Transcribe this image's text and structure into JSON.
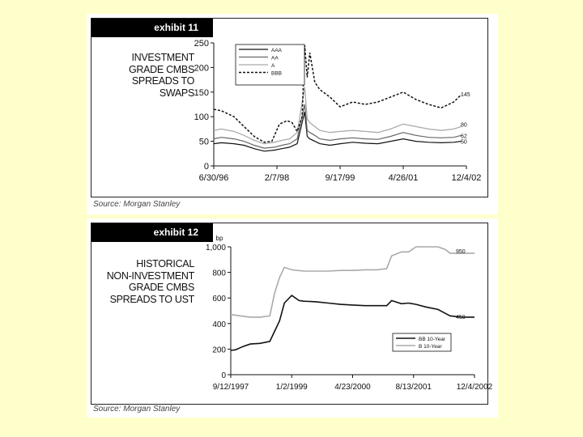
{
  "exhibits": [
    {
      "badge": "exhibit 11",
      "title_lines": [
        "INVESTMENT",
        "GRADE CMBS",
        "SPREADS TO",
        "SWAPS"
      ],
      "source": "Source: Morgan Stanley"
    },
    {
      "badge": "exhibit 12",
      "title_lines": [
        "HISTORICAL",
        "NON-INVESTMENT",
        "GRADE CMBS",
        "SPREADS TO UST"
      ],
      "source": "Source: Morgan Stanley"
    }
  ],
  "chart_data": [
    {
      "type": "line",
      "x_tick_labels": [
        "6/30/96",
        "2/7/98",
        "9/17/99",
        "4/26/01",
        "12/4/02"
      ],
      "y_ticks": [
        0,
        50,
        100,
        150,
        200,
        250
      ],
      "ylim": [
        0,
        250
      ],
      "legend_position": "top-center",
      "colors": {
        "AAA": "#111111",
        "AA": "#666666",
        "A": "#aaaaaa",
        "BBB": "#111111"
      },
      "series": [
        {
          "name": "AAA",
          "end_label": "50",
          "x": [
            0,
            0.03,
            0.08,
            0.12,
            0.16,
            0.2,
            0.24,
            0.27,
            0.3,
            0.33,
            0.36,
            0.37,
            0.38,
            0.4,
            0.42,
            0.46,
            0.5,
            0.55,
            0.6,
            0.65,
            0.7,
            0.75,
            0.8,
            0.85,
            0.9,
            0.95,
            0.98
          ],
          "values": [
            45,
            47,
            45,
            42,
            35,
            30,
            32,
            35,
            38,
            45,
            110,
            60,
            55,
            50,
            45,
            42,
            45,
            48,
            46,
            45,
            50,
            55,
            50,
            48,
            47,
            48,
            50
          ]
        },
        {
          "name": "AA",
          "end_label": "62",
          "x": [
            0,
            0.03,
            0.08,
            0.12,
            0.16,
            0.2,
            0.24,
            0.27,
            0.3,
            0.33,
            0.36,
            0.37,
            0.38,
            0.4,
            0.42,
            0.46,
            0.5,
            0.55,
            0.6,
            0.65,
            0.7,
            0.75,
            0.8,
            0.85,
            0.9,
            0.95,
            0.98
          ],
          "values": [
            55,
            58,
            55,
            50,
            42,
            36,
            38,
            42,
            45,
            55,
            125,
            72,
            68,
            62,
            55,
            52,
            55,
            57,
            55,
            54,
            60,
            68,
            62,
            58,
            57,
            58,
            62
          ]
        },
        {
          "name": "A",
          "end_label": "80",
          "x": [
            0,
            0.03,
            0.08,
            0.12,
            0.16,
            0.2,
            0.24,
            0.27,
            0.3,
            0.33,
            0.36,
            0.37,
            0.38,
            0.4,
            0.42,
            0.46,
            0.5,
            0.55,
            0.6,
            0.65,
            0.7,
            0.75,
            0.8,
            0.85,
            0.9,
            0.95,
            0.98
          ],
          "values": [
            72,
            75,
            70,
            62,
            52,
            45,
            48,
            52,
            55,
            68,
            160,
            95,
            88,
            80,
            72,
            68,
            70,
            72,
            70,
            68,
            75,
            85,
            80,
            75,
            72,
            75,
            80
          ]
        },
        {
          "name": "BBB",
          "end_label": "145",
          "x": [
            0,
            0.03,
            0.08,
            0.12,
            0.16,
            0.2,
            0.23,
            0.26,
            0.29,
            0.31,
            0.33,
            0.35,
            0.36,
            0.37,
            0.38,
            0.4,
            0.42,
            0.46,
            0.5,
            0.55,
            0.6,
            0.65,
            0.7,
            0.75,
            0.8,
            0.85,
            0.9,
            0.95,
            0.98
          ],
          "values": [
            115,
            112,
            100,
            80,
            60,
            48,
            50,
            85,
            92,
            88,
            70,
            100,
            245,
            180,
            230,
            170,
            155,
            140,
            120,
            130,
            125,
            130,
            140,
            150,
            135,
            125,
            118,
            130,
            145
          ]
        }
      ]
    },
    {
      "type": "line",
      "y_unit_label": "bp",
      "x_tick_labels": [
        "9/12/1997",
        "1/2/1999",
        "4/23/2000",
        "8/13/2001",
        "12/4/2002"
      ],
      "y_ticks": [
        0,
        200,
        400,
        600,
        800,
        1000
      ],
      "y_tick_labels": [
        "0",
        "200",
        "400",
        "600",
        "800",
        "1,000"
      ],
      "ylim": [
        0,
        1000
      ],
      "legend_position": "lower-right",
      "colors": {
        "BB 10-Year": "#111111",
        "B 10-Year": "#aaaaaa"
      },
      "series": [
        {
          "name": "BB 10-Year",
          "end_label": "450",
          "x": [
            0,
            0.02,
            0.05,
            0.08,
            0.12,
            0.16,
            0.2,
            0.22,
            0.25,
            0.28,
            0.3,
            0.35,
            0.4,
            0.45,
            0.5,
            0.55,
            0.6,
            0.64,
            0.66,
            0.7,
            0.73,
            0.76,
            0.8,
            0.85,
            0.88,
            0.9,
            0.95,
            1.0
          ],
          "values": [
            190,
            195,
            220,
            240,
            245,
            260,
            420,
            560,
            620,
            580,
            575,
            570,
            560,
            550,
            545,
            540,
            540,
            540,
            580,
            555,
            560,
            550,
            530,
            510,
            480,
            460,
            450,
            450
          ]
        },
        {
          "name": "B 10-Year",
          "end_label": "950",
          "x": [
            0,
            0.04,
            0.08,
            0.12,
            0.16,
            0.18,
            0.2,
            0.22,
            0.25,
            0.3,
            0.35,
            0.4,
            0.45,
            0.5,
            0.55,
            0.6,
            0.64,
            0.66,
            0.7,
            0.73,
            0.76,
            0.8,
            0.85,
            0.88,
            0.9,
            0.95,
            1.0
          ],
          "values": [
            470,
            460,
            450,
            450,
            460,
            640,
            760,
            840,
            820,
            810,
            810,
            810,
            815,
            815,
            820,
            820,
            830,
            930,
            960,
            960,
            1000,
            1000,
            1000,
            980,
            950,
            950,
            950
          ]
        }
      ]
    }
  ]
}
